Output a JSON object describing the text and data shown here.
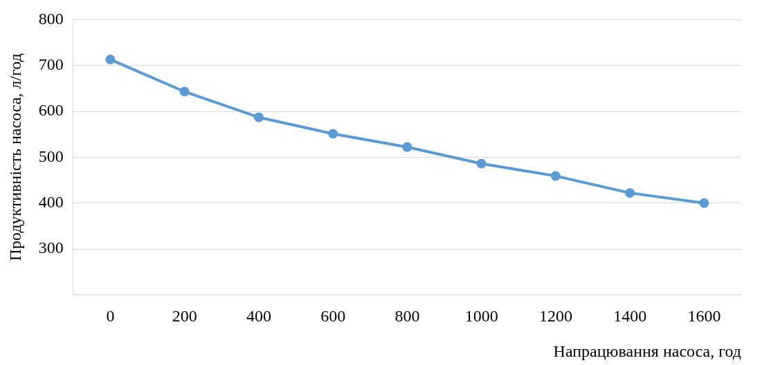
{
  "chart_data": {
    "type": "line",
    "xlabel": "Напрацювання насоса, год",
    "ylabel": "Продуктивність насоса, л/год",
    "categories": [
      "0",
      "200",
      "400",
      "600",
      "800",
      "1000",
      "1200",
      "1400",
      "1600"
    ],
    "series": [
      {
        "color": "#5b9bd5",
        "values": [
          713,
          643,
          587,
          551,
          522,
          486,
          459,
          422,
          400
        ]
      }
    ],
    "ylim": [
      200,
      800
    ],
    "yticks": [
      {
        "value": 200,
        "label": null
      },
      300,
      400,
      500,
      600,
      700,
      800
    ],
    "grid": "y",
    "legend": false,
    "marker": "circle",
    "line_style": "solid"
  }
}
